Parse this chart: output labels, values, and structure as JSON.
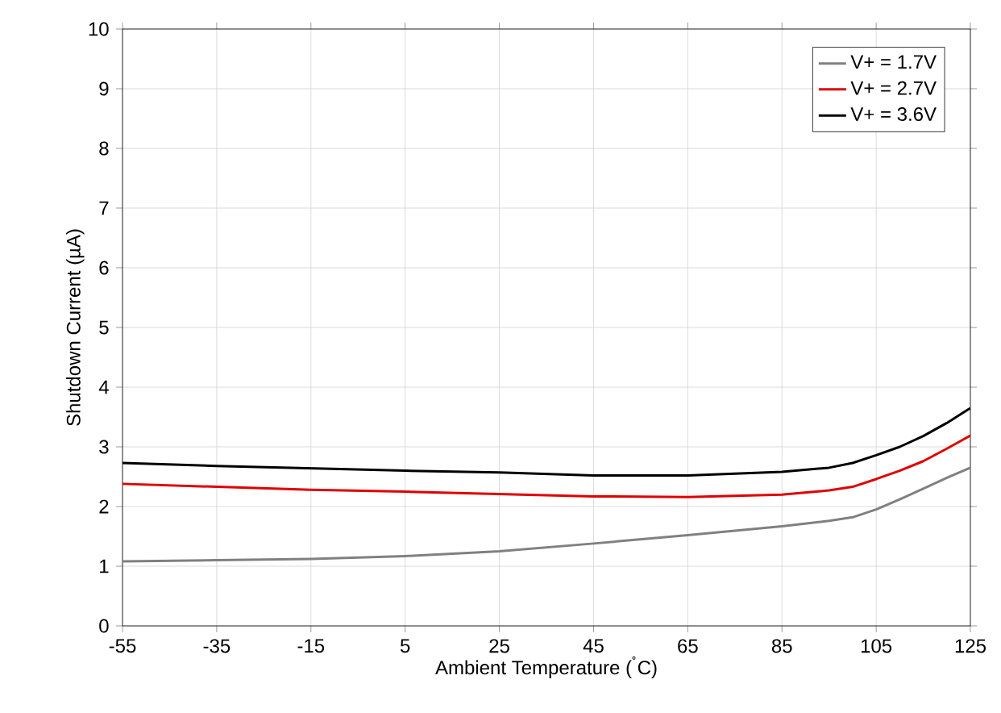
{
  "chart_data": {
    "type": "line",
    "xlabel": "Ambient Temperature ($^{˚}$C)",
    "ylabel": "Shutdown Current (µA)",
    "xlim": [
      -55,
      125
    ],
    "ylim": [
      0,
      10
    ],
    "xticks": [
      -55,
      -35,
      -15,
      5,
      25,
      45,
      65,
      85,
      105,
      125
    ],
    "yticks": [
      0,
      1,
      2,
      3,
      4,
      5,
      6,
      7,
      8,
      9,
      10
    ],
    "grid": true,
    "legend": "top right",
    "marker": "none",
    "line_style": "solid",
    "x": [
      -55,
      -35,
      -15,
      5,
      25,
      45,
      65,
      85,
      95,
      100,
      105,
      110,
      115,
      120,
      125
    ],
    "series": [
      {
        "name": "V+ = 1.7V",
        "color": "#808080",
        "values": [
          1.08,
          1.1,
          1.12,
          1.17,
          1.25,
          1.38,
          1.52,
          1.67,
          1.76,
          1.82,
          1.95,
          2.12,
          2.3,
          2.48,
          2.65
        ]
      },
      {
        "name": "V+ = 2.7V",
        "color": "#e00000",
        "values": [
          2.38,
          2.33,
          2.28,
          2.25,
          2.21,
          2.17,
          2.16,
          2.2,
          2.27,
          2.33,
          2.46,
          2.6,
          2.76,
          2.97,
          3.19
        ]
      },
      {
        "name": "V+ = 3.6V",
        "color": "#000000",
        "values": [
          2.73,
          2.68,
          2.64,
          2.6,
          2.57,
          2.52,
          2.52,
          2.58,
          2.65,
          2.73,
          2.86,
          3.0,
          3.18,
          3.4,
          3.65
        ]
      }
    ]
  }
}
